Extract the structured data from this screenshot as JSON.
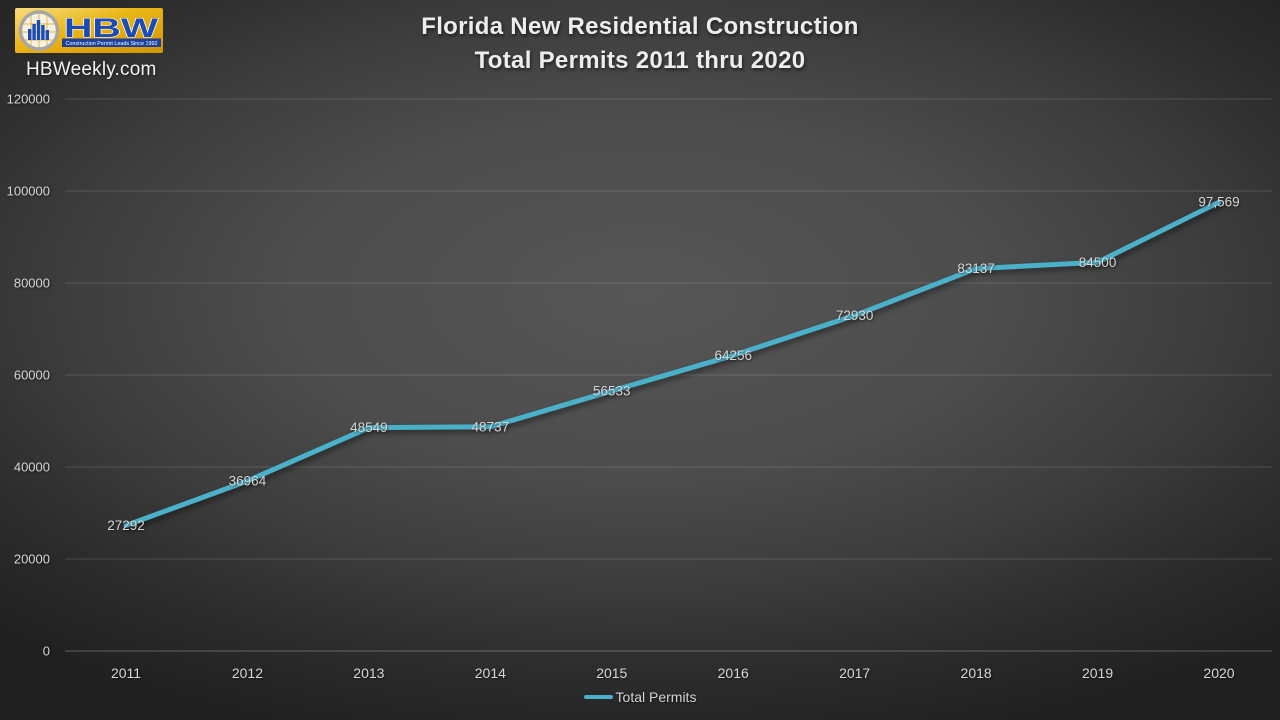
{
  "branding": {
    "logo_text": "HBW",
    "logo_tagline": "Construction Permit Leads Since 1992",
    "site": "HBWeekly.com"
  },
  "title": {
    "line1": "Florida New Residential Construction",
    "line2": "Total Permits 2011 thru 2020"
  },
  "colors": {
    "series": "#4bb0c9",
    "label_text": "#d6d6d6",
    "grid": "rgba(255,255,255,0.15)",
    "axis": "rgba(255,255,255,0.28)",
    "logo_gold_light": "#f9dd7d",
    "logo_gold": "#e9b514",
    "logo_gold_dark": "#d39400",
    "logo_blue": "#1b4bb3",
    "banner_blue": "#1d3f9e"
  },
  "chart_data": {
    "type": "line",
    "title": "Florida New Residential Construction Total Permits 2011 thru 2020",
    "categories": [
      "2011",
      "2012",
      "2013",
      "2014",
      "2015",
      "2016",
      "2017",
      "2018",
      "2019",
      "2020"
    ],
    "series": [
      {
        "name": "Total Permits",
        "values": [
          27292,
          36964,
          48549,
          48737,
          56533,
          64256,
          72930,
          83137,
          84500,
          97569
        ],
        "labels": [
          "27292",
          "36964",
          "48549",
          "48737",
          "56533",
          "64256",
          "72930",
          "83137",
          "84500",
          "97,569"
        ]
      }
    ],
    "xlabel": "",
    "ylabel": "",
    "ylim": [
      0,
      120000
    ],
    "ytick_step": 20000,
    "ytick_labels": [
      "0",
      "20000",
      "40000",
      "60000",
      "80000",
      "100000",
      "120000"
    ],
    "grid": true,
    "legend_position": "bottom"
  }
}
